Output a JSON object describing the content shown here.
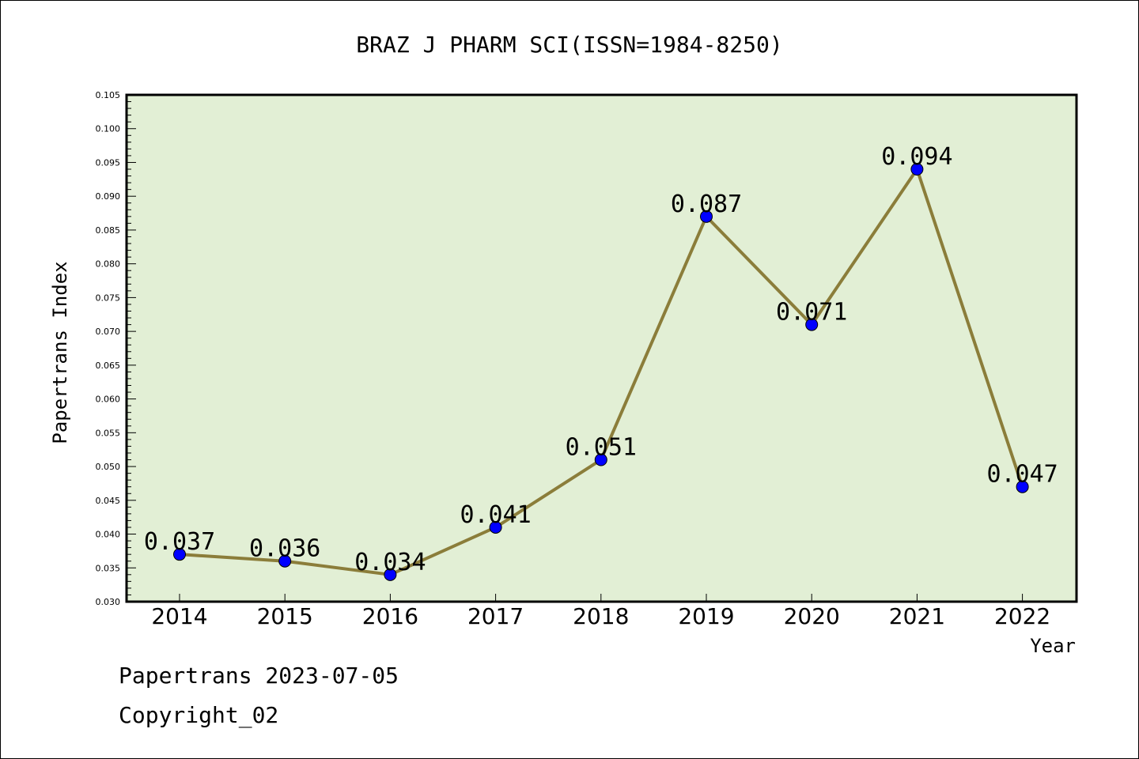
{
  "chart_data": {
    "type": "line",
    "title": "BRAZ J PHARM SCI(ISSN=1984-8250)",
    "xlabel": "Year",
    "ylabel": "Papertrans Index",
    "categories": [
      "2014",
      "2015",
      "2016",
      "2017",
      "2018",
      "2019",
      "2020",
      "2021",
      "2022"
    ],
    "values": [
      0.037,
      0.036,
      0.034,
      0.041,
      0.051,
      0.087,
      0.071,
      0.094,
      0.047
    ],
    "value_labels": [
      "0.037",
      "0.036",
      "0.034",
      "0.041",
      "0.051",
      "0.087",
      "0.071",
      "0.094",
      "0.047"
    ],
    "ylim": [
      0.03,
      0.105
    ],
    "yticks": [
      "0.030",
      "0.035",
      "0.040",
      "0.045",
      "0.050",
      "0.055",
      "0.060",
      "0.065",
      "0.070",
      "0.075",
      "0.080",
      "0.085",
      "0.090",
      "0.095",
      "0.100",
      "0.105"
    ],
    "grid": false,
    "colors": {
      "plot_background": "#e2efd5",
      "line": "#8b7d3a",
      "marker": "#0000ff"
    }
  },
  "footer": {
    "source": "Papertrans 2023-07-05",
    "copyright": "Copyright_02"
  }
}
